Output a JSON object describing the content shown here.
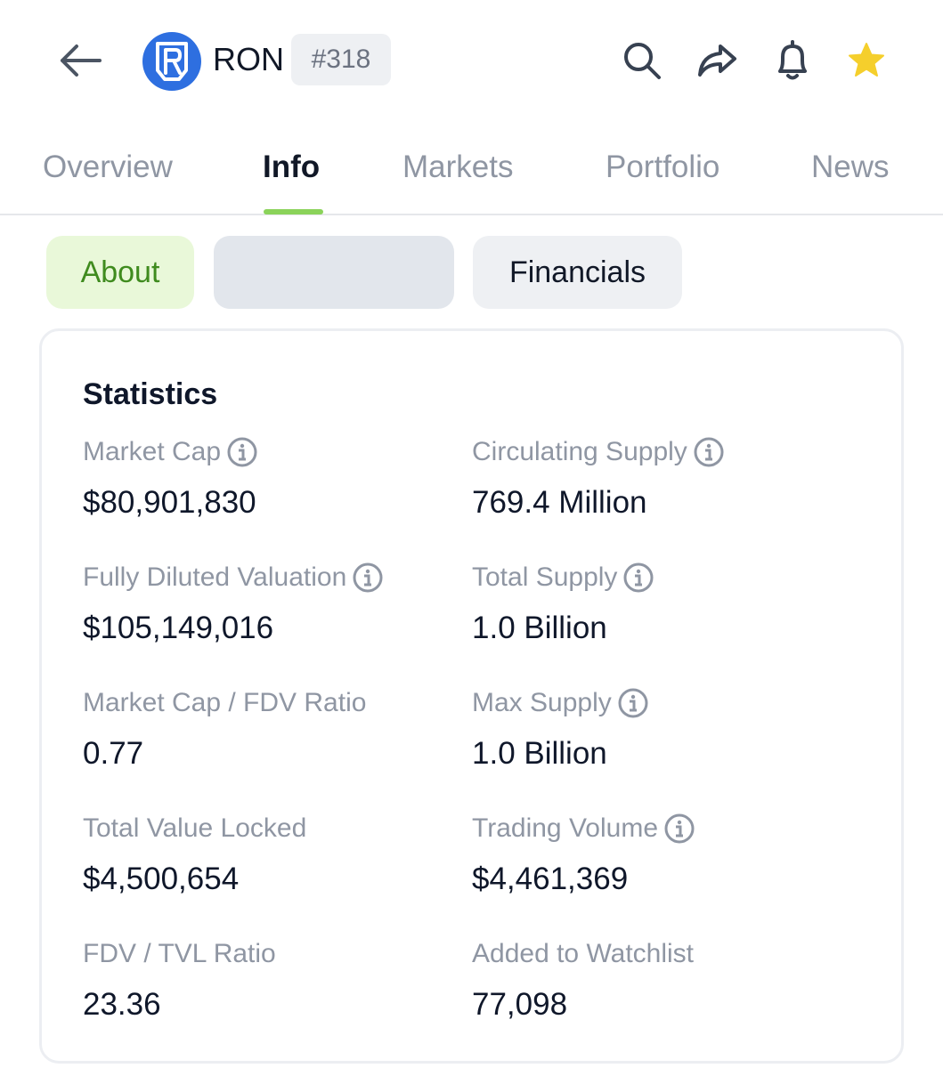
{
  "header": {
    "coin_symbol": "RON",
    "rank": "#318",
    "logo_letter": "R",
    "brand_color": "#2e6fe0",
    "icons": [
      "back-arrow-icon",
      "search-icon",
      "share-icon",
      "bell-icon",
      "star-icon"
    ],
    "star_color": "#f5cf2c"
  },
  "tabs": [
    {
      "label": "Overview",
      "active": false
    },
    {
      "label": "Info",
      "active": true
    },
    {
      "label": "Markets",
      "active": false
    },
    {
      "label": "Portfolio",
      "active": false
    },
    {
      "label": "News",
      "active": false
    }
  ],
  "accent_color": "#8bd35a",
  "subtabs": [
    {
      "label": "About",
      "active": true
    },
    {
      "label": "",
      "active": false
    },
    {
      "label": "Financials",
      "active": false
    }
  ],
  "statistics": {
    "title": "Statistics",
    "items": [
      {
        "label": "Market Cap",
        "value": "$80,901,830",
        "info": true
      },
      {
        "label": "Circulating Supply",
        "value": "769.4 Million",
        "info": true
      },
      {
        "label": "Fully Diluted Valuation",
        "value": "$105,149,016",
        "info": true
      },
      {
        "label": "Total Supply",
        "value": "1.0 Billion",
        "info": true
      },
      {
        "label": "Market Cap / FDV Ratio",
        "value": "0.77",
        "info": false
      },
      {
        "label": "Max Supply",
        "value": "1.0 Billion",
        "info": true
      },
      {
        "label": "Total Value Locked",
        "value": "$4,500,654",
        "info": false
      },
      {
        "label": "Trading Volume",
        "value": "$4,461,369",
        "info": true
      },
      {
        "label": "FDV / TVL Ratio",
        "value": "23.36",
        "info": false
      },
      {
        "label": "Added to Watchlist",
        "value": "77,098",
        "info": false
      }
    ]
  }
}
